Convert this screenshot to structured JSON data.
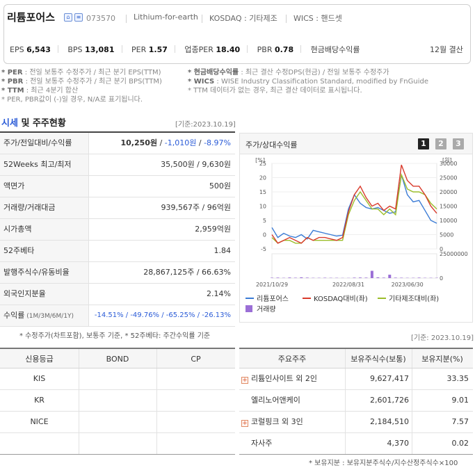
{
  "header": {
    "company_name": "리튬포어스",
    "stock_code": "073570",
    "slogan": "Lithium-for-earth",
    "market": "KOSDAQ : 기타제조",
    "wics": "WICS : 핸드셋",
    "icons": [
      "home-icon",
      "share-icon"
    ],
    "metrics": [
      {
        "label": "EPS",
        "value": "6,543"
      },
      {
        "label": "BPS",
        "value": "13,081"
      },
      {
        "label": "PER",
        "value": "1.57"
      },
      {
        "label": "업종PER",
        "value": "18.40"
      },
      {
        "label": "PBR",
        "value": "0.78"
      },
      {
        "label": "현금배당수익률",
        "value": ""
      }
    ],
    "settlement": "12월 결산"
  },
  "notes": {
    "left": [
      {
        "k": "* PER",
        "t": ": 전일 보통주 수정주가 / 최근 분기 EPS(TTM)"
      },
      {
        "k": "* PBR",
        "t": ": 전일 보통주 수정주가 / 최근 분기 BPS(TTM)"
      },
      {
        "k": "* TTM",
        "t": ": 최근 4분기 합산"
      },
      {
        "k": "",
        "t": "* PER, PBR값이 (-)일 경우, N/A로 표기됩니다."
      }
    ],
    "right": [
      {
        "k": "* 현금배당수익률",
        "t": ": 최근 결산 수정DPS(현금) / 전일 보통주 수정주가"
      },
      {
        "k": "* WICS",
        "t": ": WISE Industry Classification Standard, modified by FnGuide"
      },
      {
        "k": "",
        "t": "* TTM 데이터가 없는 경우, 최근 결산 데이터로 표시됩니다."
      }
    ]
  },
  "section": {
    "title_highlight": "시세",
    "title_rest": " 및 주주현황",
    "base_date": "[기준:2023.10.19]"
  },
  "price_table": [
    {
      "label": "주가/전일대비/수익률",
      "v1": "10,250원",
      "v2": "-1,010원",
      "v3": "-8.97%"
    },
    {
      "label": "52Weeks 최고/최저",
      "value": "35,500원 / 9,630원"
    },
    {
      "label": "액면가",
      "value": "500원"
    },
    {
      "label": "거래량/거래대금",
      "value": "939,567주 / 96억원"
    },
    {
      "label": "시가총액",
      "value": "2,959억원"
    },
    {
      "label": "52주베타",
      "value": "1.84"
    },
    {
      "label": "발행주식수/유동비율",
      "value": "28,867,125주 / 66.63%"
    },
    {
      "label": "외국인지분율",
      "value": "2.14%"
    },
    {
      "label": "수익률",
      "sub": " (1M/3M/6M/1Y)",
      "value": "-14.51% / -49.76% / -65.25% / -26.13%"
    }
  ],
  "chart_panel": {
    "title": "주가/상대수익률",
    "pages": [
      "1",
      "2",
      "3"
    ],
    "legend": [
      "리튬포어스",
      "KOSDAQ대비(좌)",
      "기타제조대비(좌)",
      "거래량"
    ],
    "colors": {
      "price": "#3a7bd5",
      "kosdaq": "#d93a2b",
      "industry": "#9bbd2a",
      "volume": "#9b6fd6"
    }
  },
  "chart_data": {
    "type": "line",
    "x_ticks": [
      "2021/10/29",
      "2022/08/31",
      "2023/06/30"
    ],
    "y_left_ticks": [
      "[%]",
      "25",
      "20",
      "15",
      "10",
      "5",
      "0",
      "-5"
    ],
    "y_left_range": [
      -5,
      25
    ],
    "y_right_ticks": [
      "[원]",
      "30000",
      "25000",
      "20000",
      "15000",
      "10000",
      "5000",
      "0"
    ],
    "y_right_range": [
      0,
      30000
    ],
    "y_volume_ticks": [
      "25000000",
      "0"
    ],
    "y_volume_range": [
      0,
      25000000
    ],
    "series": [
      {
        "name": "리튬포어스",
        "axis": "right",
        "values": [
          7500,
          4000,
          5500,
          4500,
          4000,
          5000,
          3500,
          6500,
          6000,
          5500,
          5000,
          4500,
          4800,
          14000,
          19000,
          16000,
          14500,
          14000,
          14500,
          13500,
          12500,
          13000,
          26000,
          19000,
          16500,
          17000,
          13500,
          10000,
          9000
        ]
      },
      {
        "name": "KOSDAQ대비(좌)",
        "axis": "left",
        "values": [
          0,
          -3,
          -2,
          -1,
          -2,
          -3,
          -1,
          -2,
          -1,
          -1,
          -1.5,
          -2,
          -1,
          8,
          14,
          17,
          13,
          10,
          11,
          8.5,
          10,
          9,
          24.5,
          19,
          17,
          17,
          14,
          10,
          7.5
        ]
      },
      {
        "name": "기타제조대비(좌)",
        "axis": "left",
        "values": [
          -1,
          -3,
          -2,
          -2,
          -3,
          -3,
          -1,
          -2,
          -2,
          -2,
          -2,
          -2,
          -2,
          7,
          12,
          15,
          12,
          9,
          9,
          7,
          9,
          7,
          21,
          16,
          15,
          15,
          14,
          11,
          9
        ]
      },
      {
        "name": "거래량",
        "axis": "volume",
        "values": [
          0.4,
          0.5,
          0.3,
          0.6,
          0.4,
          0.8,
          0.5,
          0.3,
          0.3,
          0.4,
          0.3,
          0.3,
          0.2,
          0.2,
          0.5,
          0.6,
          0.5,
          7.5,
          0.8,
          0.5,
          3.5,
          0.5,
          0.4,
          0.3,
          0.3,
          0.5,
          0.3,
          0.3,
          0.3
        ]
      }
    ]
  },
  "footnote_left": "* 수정주가(차트포함), 보통주 기준, * 52주베타: 주간수익률 기준",
  "base_date2": "[기준: 2023.10.19]",
  "credit_table": {
    "headers": [
      "신용등급",
      "BOND",
      "CP"
    ],
    "rows": [
      [
        "KIS",
        "",
        ""
      ],
      [
        "KR",
        "",
        ""
      ],
      [
        "NICE",
        "",
        ""
      ],
      [
        "",
        "",
        ""
      ]
    ]
  },
  "shareholders": {
    "headers": [
      "주요주주",
      "보유주식수(보통)",
      "보유지분(%)"
    ],
    "rows": [
      {
        "name": "리튬인사이트 외 2인",
        "shares": "9,627,417",
        "pct": "33.35",
        "expand": true
      },
      {
        "name": "엘리노어앤케이",
        "shares": "2,601,726",
        "pct": "9.01",
        "expand": false
      },
      {
        "name": "코럴핑크 외 3인",
        "shares": "2,184,510",
        "pct": "7.57",
        "expand": true
      },
      {
        "name": "자사주",
        "shares": "4,370",
        "pct": "0.02",
        "expand": false
      }
    ]
  },
  "footnote_right": "* 보유지분 : 보유지분주식수/지수산정주식수×100"
}
